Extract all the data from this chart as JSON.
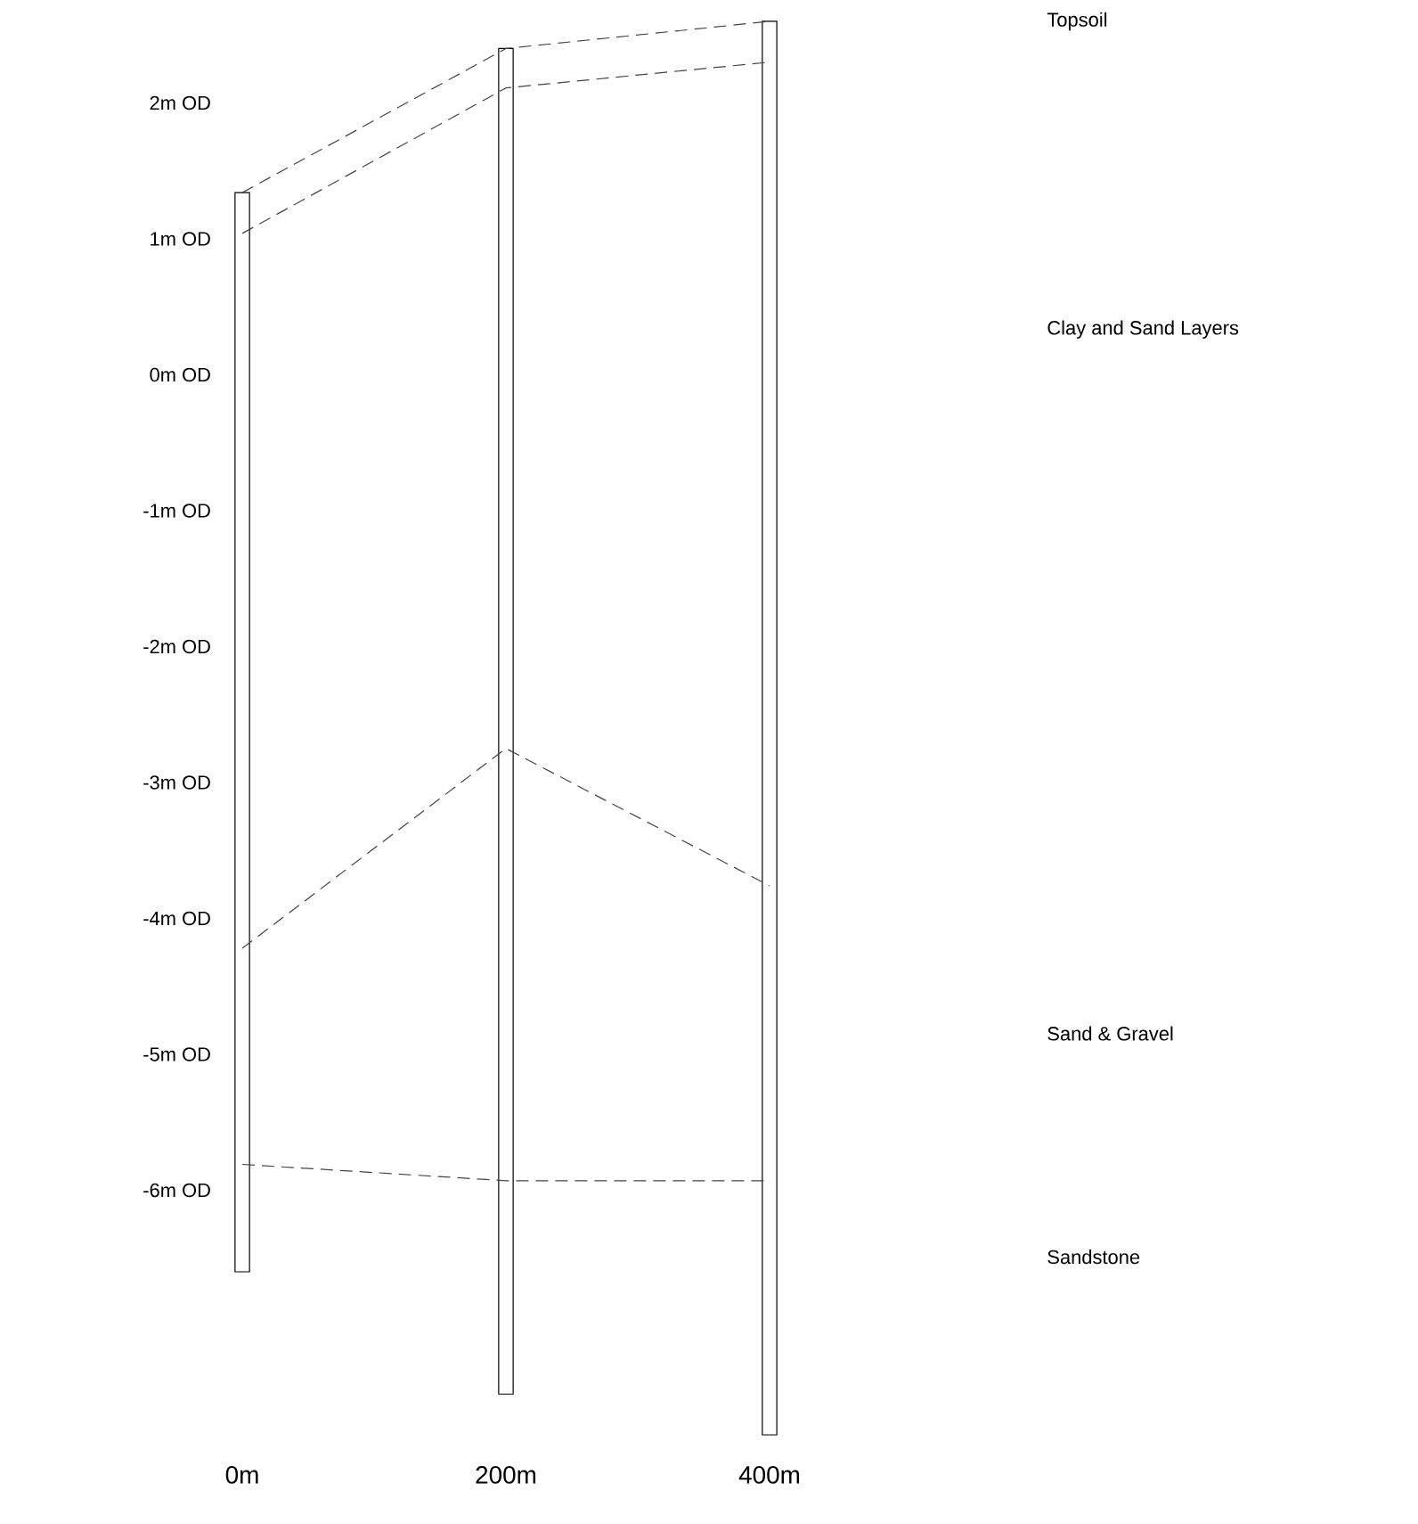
{
  "chart_data": {
    "type": "line",
    "xlim": [
      0,
      400
    ],
    "ylim": [
      -7.8,
      2.6
    ],
    "xticks": [
      {
        "value": 0,
        "label": "0m"
      },
      {
        "value": 200,
        "label": "200m"
      },
      {
        "value": 400,
        "label": "400m"
      }
    ],
    "yticks": [
      {
        "value": 2,
        "label": "2m OD"
      },
      {
        "value": 1,
        "label": "1m OD"
      },
      {
        "value": 0,
        "label": "0m OD"
      },
      {
        "value": -1,
        "label": "-1m OD"
      },
      {
        "value": -2,
        "label": "-2m OD"
      },
      {
        "value": -3,
        "label": "-3m OD"
      },
      {
        "value": -4,
        "label": "-4m OD"
      },
      {
        "value": -5,
        "label": "-5m OD"
      },
      {
        "value": -6,
        "label": "-6m OD"
      }
    ],
    "marker": "none",
    "line_style": "dashed",
    "series": [
      {
        "type": "bar",
        "x": [
          0,
          200,
          400
        ],
        "base": [
          -6.6,
          -7.5,
          -7.8
        ],
        "values": [
          7.94,
          9.9,
          10.4
        ],
        "color": "#ffffff"
      },
      {
        "x": [
          0,
          200,
          400
        ],
        "values": [
          1.34,
          2.4,
          2.6
        ],
        "color": "#444444"
      },
      {
        "x": [
          0,
          200,
          400
        ],
        "values": [
          1.04,
          2.11,
          2.3
        ],
        "color": "#444444"
      },
      {
        "x": [
          0,
          200,
          400
        ],
        "values": [
          -4.22,
          -2.75,
          -3.76
        ],
        "color": "#444444"
      },
      {
        "x": [
          0,
          200,
          400
        ],
        "values": [
          -5.81,
          -5.93,
          -5.93
        ],
        "color": "#444444"
      }
    ],
    "annotations": [
      "Topsoil",
      "Clay and Sand Layers",
      "Sand & Gravel",
      "Sandstone"
    ]
  }
}
